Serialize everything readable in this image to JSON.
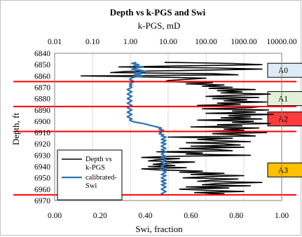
{
  "chart_data": {
    "type": "line",
    "title": "Depth vs k-PGS and Swi",
    "top_axis": {
      "label": "k-PGS, mD",
      "scale": "log",
      "range": [
        0.01,
        10000
      ],
      "ticks": [
        "0.01",
        "0.10",
        "1.00",
        "10.00",
        "100.00",
        "1000.00",
        "10000.00"
      ],
      "tick_values": [
        0.01,
        0.1,
        1,
        10,
        100,
        1000,
        10000
      ]
    },
    "bottom_axis": {
      "label": "Swi, fraction",
      "range": [
        0,
        1
      ],
      "ticks": [
        "0.00",
        "0.20",
        "0.40",
        "0.60",
        "0.80",
        "1.00"
      ],
      "tick_values": [
        0,
        0.2,
        0.4,
        0.6,
        0.8,
        1.0
      ]
    },
    "y_axis": {
      "label": "Depth, ft",
      "range": [
        6840,
        6970
      ],
      "inverted": true,
      "ticks": [
        "6840",
        "6850",
        "6860",
        "6870",
        "6880",
        "6890",
        "6900",
        "6910",
        "6920",
        "6930",
        "6940",
        "6950",
        "6960",
        "6970"
      ],
      "tick_values": [
        6840,
        6850,
        6860,
        6870,
        6880,
        6890,
        6900,
        6910,
        6920,
        6930,
        6940,
        6950,
        6960,
        6970
      ]
    },
    "grid": "vertical",
    "series": [
      {
        "name": "Depth vs k-PGS",
        "color": "#000000",
        "axis": "top",
        "depth": [
          6848,
          6849,
          6850,
          6851,
          6852,
          6853,
          6854,
          6855,
          6856,
          6857,
          6858,
          6859,
          6860,
          6861,
          6862,
          6863,
          6864,
          6865,
          6866,
          6867,
          6868,
          6869,
          6870,
          6871,
          6872,
          6873,
          6874,
          6875,
          6876,
          6877,
          6878,
          6879,
          6880,
          6881,
          6882,
          6883,
          6884,
          6885,
          6886,
          6887,
          6888,
          6889,
          6890,
          6891,
          6892,
          6893,
          6894,
          6895,
          6896,
          6897,
          6898,
          6899,
          6900,
          6901,
          6902,
          6903,
          6904,
          6905,
          6906,
          6907,
          6908,
          6909,
          6910,
          6911,
          6912,
          6913,
          6914,
          6915,
          6916,
          6917,
          6918,
          6919,
          6920,
          6921,
          6922,
          6923,
          6924,
          6925,
          6926,
          6927,
          6928,
          6929,
          6930,
          6931,
          6932,
          6933,
          6934,
          6935,
          6936,
          6937,
          6938,
          6939,
          6940,
          6941,
          6942,
          6943,
          6944,
          6945,
          6946,
          6947,
          6948,
          6949,
          6950,
          6951,
          6952,
          6953,
          6954,
          6955,
          6956,
          6957,
          6958,
          6959,
          6960,
          6961,
          6962,
          6963,
          6964,
          6965
        ],
        "k": [
          8,
          500,
          3000,
          40,
          0.5,
          200,
          3000,
          60,
          0.8,
          0.3,
          150,
          700,
          0.05,
          5,
          100,
          30,
          10,
          8,
          150,
          30,
          300,
          80,
          500,
          120,
          2000,
          200,
          900,
          250,
          5000,
          600,
          100,
          2500,
          150,
          1200,
          300,
          4000,
          200,
          800,
          60,
          3000,
          1500,
          80,
          4500,
          500,
          2000,
          100,
          6000,
          400,
          1500,
          250,
          3000,
          60,
          1800,
          500,
          5000,
          200,
          900,
          40,
          2500,
          300,
          1000,
          60,
          4000,
          150,
          800,
          2000,
          10,
          500,
          60,
          200,
          1500,
          30,
          300,
          800,
          40,
          1000,
          20,
          200,
          500,
          5,
          80,
          30,
          1500,
          10,
          2,
          20,
          5,
          3,
          50,
          8,
          4,
          15,
          3,
          30,
          2,
          6,
          80,
          20,
          300,
          40,
          1000,
          100,
          25,
          700,
          150,
          60,
          3000,
          200,
          80,
          1500,
          30,
          400,
          20,
          100,
          1000,
          50,
          300,
          80
        ],
        "legend_label": "Depth vs k-PGS"
      },
      {
        "name": "calibrated-Swi",
        "color": "#2e75b6",
        "axis": "bottom",
        "depth": [
          6848,
          6849,
          6850,
          6851,
          6852,
          6853,
          6854,
          6855,
          6856,
          6857,
          6858,
          6859,
          6860,
          6861,
          6862,
          6863,
          6864,
          6865,
          6866,
          6867,
          6868,
          6869,
          6870,
          6871,
          6872,
          6873,
          6874,
          6875,
          6876,
          6877,
          6878,
          6879,
          6880,
          6881,
          6882,
          6883,
          6884,
          6885,
          6886,
          6887,
          6888,
          6889,
          6890,
          6891,
          6892,
          6893,
          6894,
          6895,
          6896,
          6897,
          6898,
          6899,
          6900,
          6901,
          6902,
          6903,
          6904,
          6905,
          6906,
          6907,
          6908,
          6909,
          6910,
          6911,
          6912,
          6913,
          6914,
          6915,
          6916,
          6917,
          6918,
          6919,
          6920,
          6921,
          6922,
          6923,
          6924,
          6925,
          6926,
          6927,
          6928,
          6929,
          6930,
          6931,
          6932,
          6933,
          6934,
          6935,
          6936,
          6937,
          6938,
          6939,
          6940,
          6941,
          6942,
          6943,
          6944,
          6945,
          6946,
          6947,
          6948,
          6949,
          6950,
          6951,
          6952,
          6953,
          6954,
          6955,
          6956,
          6957,
          6958,
          6959,
          6960,
          6961,
          6962,
          6963,
          6964,
          6965
        ],
        "swi": [
          0.36,
          0.34,
          0.37,
          0.35,
          0.39,
          0.36,
          0.34,
          0.38,
          0.4,
          0.36,
          0.38,
          0.35,
          0.39,
          0.35,
          0.34,
          0.33,
          0.34,
          0.35,
          0.34,
          0.33,
          0.34,
          0.33,
          0.34,
          0.33,
          0.32,
          0.33,
          0.34,
          0.33,
          0.32,
          0.33,
          0.34,
          0.33,
          0.32,
          0.33,
          0.34,
          0.33,
          0.32,
          0.33,
          0.34,
          0.33,
          0.32,
          0.33,
          0.34,
          0.33,
          0.32,
          0.33,
          0.34,
          0.33,
          0.32,
          0.33,
          0.34,
          0.33,
          0.34,
          0.36,
          0.39,
          0.41,
          0.43,
          0.45,
          0.47,
          0.46,
          0.48,
          0.46,
          0.47,
          0.46,
          0.48,
          0.47,
          0.49,
          0.48,
          0.47,
          0.49,
          0.48,
          0.47,
          0.49,
          0.48,
          0.47,
          0.48,
          0.49,
          0.47,
          0.48,
          0.49,
          0.48,
          0.47,
          0.48,
          0.49,
          0.47,
          0.48,
          0.49,
          0.48,
          0.47,
          0.48,
          0.49,
          0.48,
          0.47,
          0.48,
          0.49,
          0.47,
          0.48,
          0.49,
          0.48,
          0.47,
          0.49,
          0.48,
          0.47,
          0.48,
          0.49,
          0.47,
          0.48,
          0.49,
          0.47,
          0.48,
          0.49,
          0.48,
          0.47,
          0.48,
          0.49,
          0.48,
          0.47,
          0.48
        ],
        "legend_label": "calibrated-\nSwi"
      }
    ],
    "zone_boundaries": [
      6865,
      6887,
      6909,
      6965
    ],
    "zone_boundary_color": "#ff0000",
    "zones": [
      {
        "label": "A0",
        "depth": 6855,
        "fill": "#deebf7"
      },
      {
        "label": "A1",
        "depth": 6880,
        "fill": "#e2f0d9"
      },
      {
        "label": "A2",
        "depth": 6898,
        "fill": "#ff3b3b"
      },
      {
        "label": "A3",
        "depth": 6943,
        "fill": "#ffc000"
      }
    ],
    "legend": {
      "placement": "bottom-left",
      "entries": [
        "Depth vs\nk-PGS",
        "calibrated-\nSwi"
      ]
    }
  }
}
